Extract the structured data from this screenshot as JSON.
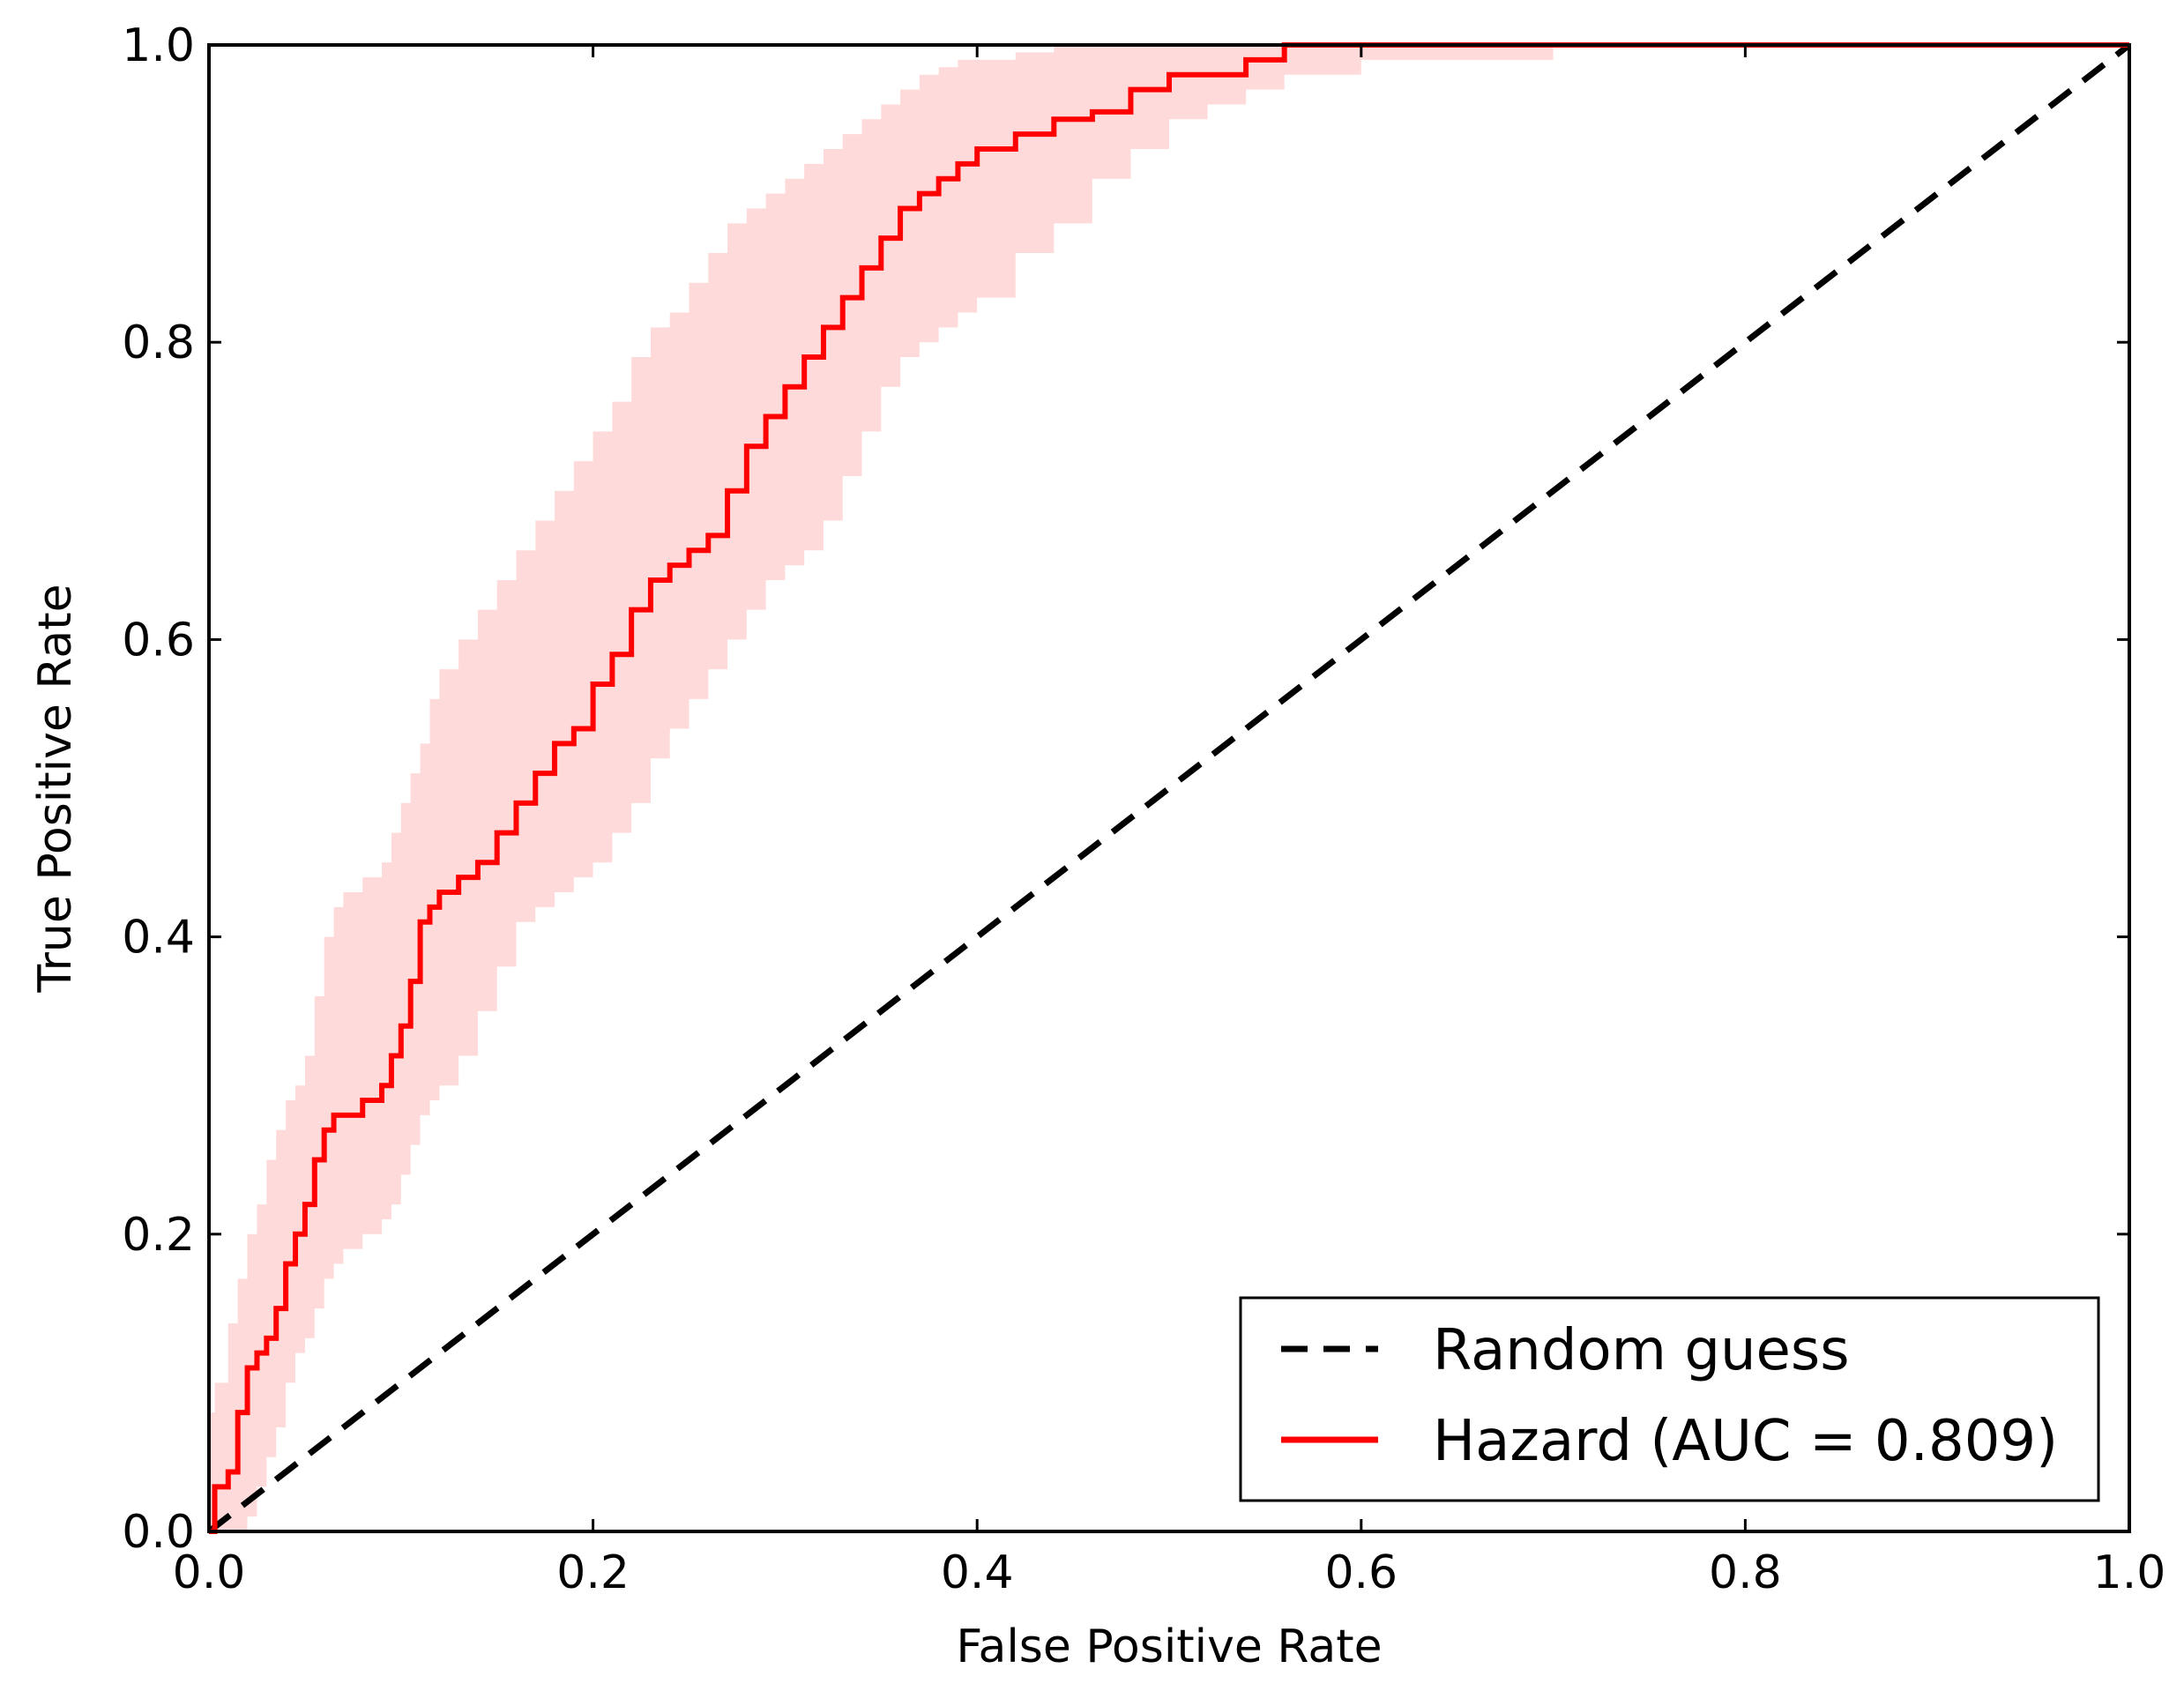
{
  "chart_data": {
    "type": "line",
    "title": "",
    "xlabel": "False Positive Rate",
    "ylabel": "True Positive Rate",
    "xlim": [
      0.0,
      1.0
    ],
    "ylim": [
      0.0,
      1.0
    ],
    "xticks": [
      "0.0",
      "0.2",
      "0.4",
      "0.6",
      "0.8",
      "1.0"
    ],
    "yticks": [
      "0.0",
      "0.2",
      "0.4",
      "0.6",
      "0.8",
      "1.0"
    ],
    "grid": false,
    "legend_position": "lower-right",
    "colors": {
      "hazard": "#ff0000",
      "band": "#ffdada",
      "random": "#000000"
    },
    "series": [
      {
        "name": "Random guess",
        "style": "dashed",
        "x": [
          0.0,
          1.0
        ],
        "y": [
          0.0,
          1.0
        ]
      },
      {
        "name": "Hazard (AUC = 0.809)",
        "style": "solid",
        "x": [
          0.0,
          0.003,
          0.01,
          0.015,
          0.02,
          0.025,
          0.03,
          0.035,
          0.04,
          0.045,
          0.05,
          0.055,
          0.06,
          0.065,
          0.07,
          0.08,
          0.09,
          0.095,
          0.1,
          0.105,
          0.11,
          0.115,
          0.12,
          0.13,
          0.14,
          0.15,
          0.16,
          0.17,
          0.18,
          0.19,
          0.2,
          0.21,
          0.22,
          0.23,
          0.24,
          0.25,
          0.26,
          0.27,
          0.28,
          0.29,
          0.3,
          0.31,
          0.32,
          0.33,
          0.34,
          0.35,
          0.36,
          0.37,
          0.38,
          0.39,
          0.4,
          0.42,
          0.44,
          0.46,
          0.48,
          0.5,
          0.52,
          0.54,
          0.56,
          0.6,
          0.7,
          0.8,
          0.9,
          1.0
        ],
        "y": [
          0.0,
          0.03,
          0.04,
          0.08,
          0.11,
          0.12,
          0.13,
          0.15,
          0.18,
          0.2,
          0.22,
          0.25,
          0.27,
          0.28,
          0.28,
          0.29,
          0.3,
          0.32,
          0.34,
          0.37,
          0.41,
          0.42,
          0.43,
          0.44,
          0.45,
          0.47,
          0.49,
          0.51,
          0.53,
          0.54,
          0.57,
          0.59,
          0.62,
          0.64,
          0.65,
          0.66,
          0.67,
          0.7,
          0.73,
          0.75,
          0.77,
          0.79,
          0.81,
          0.83,
          0.85,
          0.87,
          0.89,
          0.9,
          0.91,
          0.92,
          0.93,
          0.94,
          0.95,
          0.955,
          0.97,
          0.98,
          0.98,
          0.99,
          1.0,
          1.0,
          1.0,
          1.0,
          1.0,
          1.0
        ],
        "band_lower": [
          0.0,
          0.0,
          0.0,
          0.0,
          0.01,
          0.03,
          0.05,
          0.07,
          0.1,
          0.12,
          0.13,
          0.15,
          0.17,
          0.18,
          0.19,
          0.2,
          0.21,
          0.22,
          0.24,
          0.26,
          0.28,
          0.29,
          0.3,
          0.32,
          0.35,
          0.38,
          0.41,
          0.42,
          0.43,
          0.44,
          0.45,
          0.47,
          0.49,
          0.52,
          0.54,
          0.56,
          0.58,
          0.6,
          0.62,
          0.64,
          0.65,
          0.66,
          0.68,
          0.71,
          0.74,
          0.77,
          0.79,
          0.8,
          0.81,
          0.82,
          0.83,
          0.86,
          0.88,
          0.91,
          0.93,
          0.95,
          0.96,
          0.97,
          0.98,
          0.99,
          1.0,
          1.0,
          1.0,
          1.0
        ],
        "band_upper": [
          0.08,
          0.1,
          0.14,
          0.17,
          0.2,
          0.22,
          0.25,
          0.27,
          0.29,
          0.3,
          0.32,
          0.36,
          0.4,
          0.42,
          0.43,
          0.44,
          0.45,
          0.47,
          0.49,
          0.51,
          0.53,
          0.56,
          0.58,
          0.6,
          0.62,
          0.64,
          0.66,
          0.68,
          0.7,
          0.72,
          0.74,
          0.76,
          0.79,
          0.81,
          0.82,
          0.84,
          0.86,
          0.88,
          0.89,
          0.9,
          0.91,
          0.92,
          0.93,
          0.94,
          0.95,
          0.96,
          0.97,
          0.98,
          0.985,
          0.99,
          0.99,
          0.995,
          1.0,
          1.0,
          1.0,
          1.0,
          1.0,
          1.0,
          1.0,
          1.0,
          1.0,
          1.0,
          1.0,
          1.0
        ]
      }
    ]
  }
}
